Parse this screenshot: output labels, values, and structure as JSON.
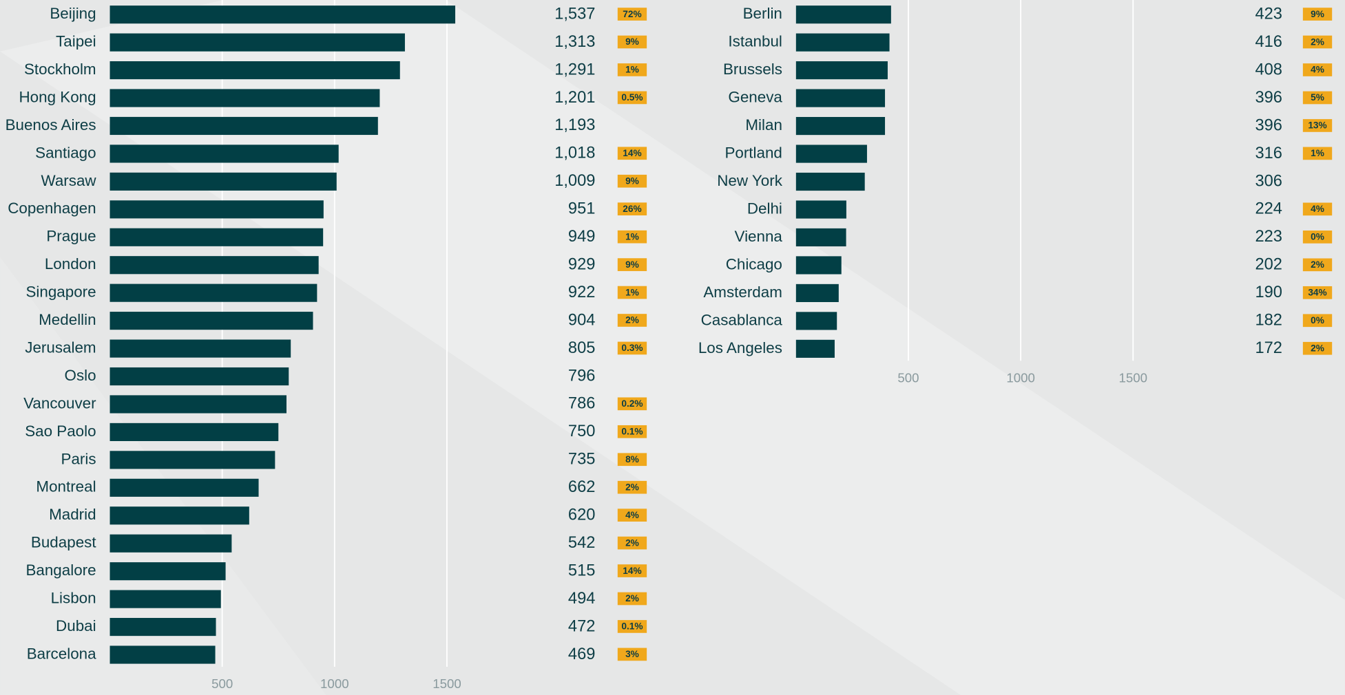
{
  "chart_data": [
    {
      "type": "bar",
      "orientation": "horizontal",
      "color": "#023f45",
      "badge_color": "#f0a81c",
      "grid": true,
      "categories": [
        "Beijing",
        "Taipei",
        "Stockholm",
        "Hong Kong",
        "Buenos Aires",
        "Santiago",
        "Warsaw",
        "Copenhagen",
        "Prague",
        "London",
        "Singapore",
        "Medellin",
        "Jerusalem",
        "Oslo",
        "Vancouver",
        "Sao Paolo",
        "Paris",
        "Montreal",
        "Madrid",
        "Budapest",
        "Bangalore",
        "Lisbon",
        "Dubai",
        "Barcelona"
      ],
      "values": [
        1537,
        1313,
        1291,
        1201,
        1193,
        1018,
        1009,
        951,
        949,
        929,
        922,
        904,
        805,
        796,
        786,
        750,
        735,
        662,
        620,
        542,
        515,
        494,
        472,
        469
      ],
      "value_labels": [
        "1,537",
        "1,313",
        "1,291",
        "1,201",
        "1,193",
        "1,018",
        "1,009",
        "951",
        "949",
        "929",
        "922",
        "904",
        "805",
        "796",
        "786",
        "750",
        "735",
        "662",
        "620",
        "542",
        "515",
        "494",
        "472",
        "469"
      ],
      "badge_labels": [
        "72%",
        "9%",
        "1%",
        "0.5%",
        null,
        "14%",
        "9%",
        "26%",
        "1%",
        "9%",
        "1%",
        "2%",
        "0.3%",
        null,
        "0.2%",
        "0.1%",
        "8%",
        "2%",
        "4%",
        "2%",
        "14%",
        "2%",
        "0.1%",
        "3%"
      ],
      "xlim": [
        0,
        2000
      ],
      "xticks": [
        500,
        1000,
        1500
      ]
    },
    {
      "type": "bar",
      "orientation": "horizontal",
      "color": "#023f45",
      "badge_color": "#f0a81c",
      "grid": true,
      "categories": [
        "Berlin",
        "Istanbul",
        "Brussels",
        "Geneva",
        "Milan",
        "Portland",
        "New York",
        "Delhi",
        "Vienna",
        "Chicago",
        "Amsterdam",
        "Casablanca",
        "Los Angeles"
      ],
      "values": [
        423,
        416,
        408,
        396,
        396,
        316,
        306,
        224,
        223,
        202,
        190,
        182,
        172
      ],
      "badge_labels": [
        "9%",
        "2%",
        "4%",
        "5%",
        "13%",
        "1%",
        null,
        "4%",
        "0%",
        "2%",
        "34%",
        "0%",
        "2%"
      ],
      "xlim": [
        0,
        2000
      ],
      "xticks": [
        500,
        1000,
        1500
      ]
    }
  ]
}
